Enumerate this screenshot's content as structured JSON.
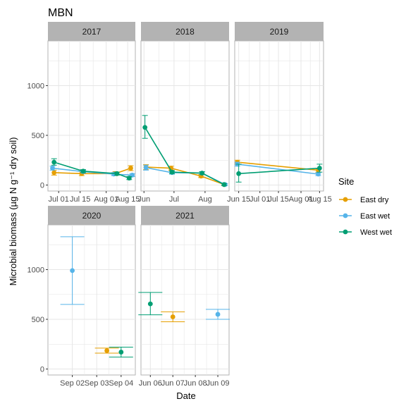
{
  "chart_data": {
    "type": "scatter",
    "title": "MBN",
    "xlabel": "Date",
    "ylabel": "Microbial biomass (µg N g⁻¹ dry soil)",
    "ylim": [
      -60,
      1450
    ],
    "yticks": [
      0,
      500,
      1000
    ],
    "legend": {
      "title": "Site",
      "placement": "right",
      "entries": [
        {
          "name": "East dry",
          "color": "#E69F00"
        },
        {
          "name": "East wet",
          "color": "#56B4E9"
        },
        {
          "name": "West wet",
          "color": "#009E73"
        }
      ]
    },
    "panels": [
      {
        "label": "2017",
        "xlim": [
          "2017-06-24",
          "2017-08-20"
        ],
        "xticks": [
          {
            "date": "2017-07-01",
            "label": "Jul 01"
          },
          {
            "date": "2017-07-15",
            "label": "Jul 15"
          },
          {
            "date": "2017-08-01",
            "label": "Aug 01"
          },
          {
            "date": "2017-08-15",
            "label": "Aug 15"
          }
        ],
        "connect": true,
        "series": [
          {
            "name": "East dry",
            "points": [
              {
                "x": "2017-06-28",
                "y": 125,
                "lo": 100,
                "hi": 150
              },
              {
                "x": "2017-07-16",
                "y": 115,
                "lo": 95,
                "hi": 135
              },
              {
                "x": "2017-08-07",
                "y": 115,
                "lo": 95,
                "hi": 135
              },
              {
                "x": "2017-08-17",
                "y": 170,
                "lo": 145,
                "hi": 195
              }
            ]
          },
          {
            "name": "East wet",
            "points": [
              {
                "x": "2017-06-27",
                "y": 170,
                "lo": 150,
                "hi": 190
              },
              {
                "x": "2017-07-17",
                "y": 135,
                "lo": 120,
                "hi": 150
              },
              {
                "x": "2017-08-06",
                "y": 110,
                "lo": 95,
                "hi": 125
              },
              {
                "x": "2017-08-18",
                "y": 100,
                "lo": 85,
                "hi": 115
              }
            ]
          },
          {
            "name": "West wet",
            "points": [
              {
                "x": "2017-06-28",
                "y": 230,
                "lo": 200,
                "hi": 265
              },
              {
                "x": "2017-07-17",
                "y": 140,
                "lo": 125,
                "hi": 155
              },
              {
                "x": "2017-08-08",
                "y": 115,
                "lo": 100,
                "hi": 130
              },
              {
                "x": "2017-08-16",
                "y": 70,
                "lo": 55,
                "hi": 85
              }
            ]
          }
        ]
      },
      {
        "label": "2018",
        "xlim": [
          "2018-05-29",
          "2018-08-25"
        ],
        "xticks": [
          {
            "date": "2018-06-01",
            "label": "Jun"
          },
          {
            "date": "2018-07-01",
            "label": "Jul"
          },
          {
            "date": "2018-08-01",
            "label": "Aug"
          }
        ],
        "connect": true,
        "series": [
          {
            "name": "East dry",
            "points": [
              {
                "x": "2018-06-03",
                "y": 180,
                "lo": 155,
                "hi": 205
              },
              {
                "x": "2018-06-28",
                "y": 170,
                "lo": 150,
                "hi": 190
              },
              {
                "x": "2018-07-28",
                "y": 90,
                "lo": 75,
                "hi": 105
              },
              {
                "x": "2018-08-20",
                "y": 5,
                "lo": -5,
                "hi": 15
              }
            ]
          },
          {
            "name": "East wet",
            "points": [
              {
                "x": "2018-06-03",
                "y": 175,
                "lo": 150,
                "hi": 200
              },
              {
                "x": "2018-06-29",
                "y": 125,
                "lo": 110,
                "hi": 140
              },
              {
                "x": "2018-07-29",
                "y": 120,
                "lo": 105,
                "hi": 135
              },
              {
                "x": "2018-08-21",
                "y": 5,
                "lo": -5,
                "hi": 15
              }
            ]
          },
          {
            "name": "West wet",
            "points": [
              {
                "x": "2018-06-02",
                "y": 580,
                "lo": 470,
                "hi": 700
              },
              {
                "x": "2018-06-29",
                "y": 130,
                "lo": 115,
                "hi": 145
              },
              {
                "x": "2018-07-29",
                "y": 120,
                "lo": 105,
                "hi": 135
              },
              {
                "x": "2018-08-20",
                "y": 5,
                "lo": -5,
                "hi": 15
              }
            ]
          }
        ]
      },
      {
        "label": "2019",
        "xlim": [
          "2019-06-12",
          "2019-08-18"
        ],
        "xticks": [
          {
            "date": "2019-06-15",
            "label": "Jun 15"
          },
          {
            "date": "2019-07-01",
            "label": "Jul 01"
          },
          {
            "date": "2019-07-15",
            "label": "Jul 15"
          },
          {
            "date": "2019-08-01",
            "label": "Aug 01"
          },
          {
            "date": "2019-08-15",
            "label": "Aug 15"
          }
        ],
        "connect": true,
        "series": [
          {
            "name": "East dry",
            "points": [
              {
                "x": "2019-06-14",
                "y": 230,
                "lo": 210,
                "hi": 250
              },
              {
                "x": "2019-08-14",
                "y": 150,
                "lo": 130,
                "hi": 170
              }
            ]
          },
          {
            "name": "East wet",
            "points": [
              {
                "x": "2019-06-14",
                "y": 210,
                "lo": 190,
                "hi": 230
              },
              {
                "x": "2019-08-14",
                "y": 110,
                "lo": 95,
                "hi": 125
              }
            ]
          },
          {
            "name": "West wet",
            "points": [
              {
                "x": "2019-06-15",
                "y": 115,
                "lo": 30,
                "hi": 210
              },
              {
                "x": "2019-08-15",
                "y": 170,
                "lo": 130,
                "hi": 210
              }
            ]
          }
        ]
      },
      {
        "label": "2020",
        "xlim": [
          "2020-09-01",
          "2020-09-04 14:00"
        ],
        "xticks": [
          {
            "date": "2020-09-02",
            "label": "Sep 02"
          },
          {
            "date": "2020-09-03",
            "label": "Sep 03"
          },
          {
            "date": "2020-09-04",
            "label": "Sep 04"
          }
        ],
        "connect": false,
        "series": [
          {
            "name": "East dry",
            "points": [
              {
                "x": "2020-09-03 10:00",
                "y": 185,
                "lo": 160,
                "hi": 210
              }
            ]
          },
          {
            "name": "East wet",
            "points": [
              {
                "x": "2020-09-02",
                "y": 990,
                "lo": 650,
                "hi": 1330
              }
            ]
          },
          {
            "name": "West wet",
            "points": [
              {
                "x": "2020-09-04",
                "y": 170,
                "lo": 120,
                "hi": 220
              }
            ]
          }
        ]
      },
      {
        "label": "2021",
        "xlim": [
          "2021-06-05 14:00",
          "2021-06-09 12:00"
        ],
        "xticks": [
          {
            "date": "2021-06-06",
            "label": "Jun 06"
          },
          {
            "date": "2021-06-07",
            "label": "Jun 07"
          },
          {
            "date": "2021-06-08",
            "label": "Jun 08"
          },
          {
            "date": "2021-06-09",
            "label": "Jun 09"
          }
        ],
        "connect": false,
        "series": [
          {
            "name": "East dry",
            "points": [
              {
                "x": "2021-06-07",
                "y": 525,
                "lo": 475,
                "hi": 575
              }
            ]
          },
          {
            "name": "East wet",
            "points": [
              {
                "x": "2021-06-09",
                "y": 550,
                "lo": 500,
                "hi": 600
              }
            ]
          },
          {
            "name": "West wet",
            "points": [
              {
                "x": "2021-06-06",
                "y": 655,
                "lo": 545,
                "hi": 770
              }
            ]
          }
        ]
      }
    ]
  }
}
